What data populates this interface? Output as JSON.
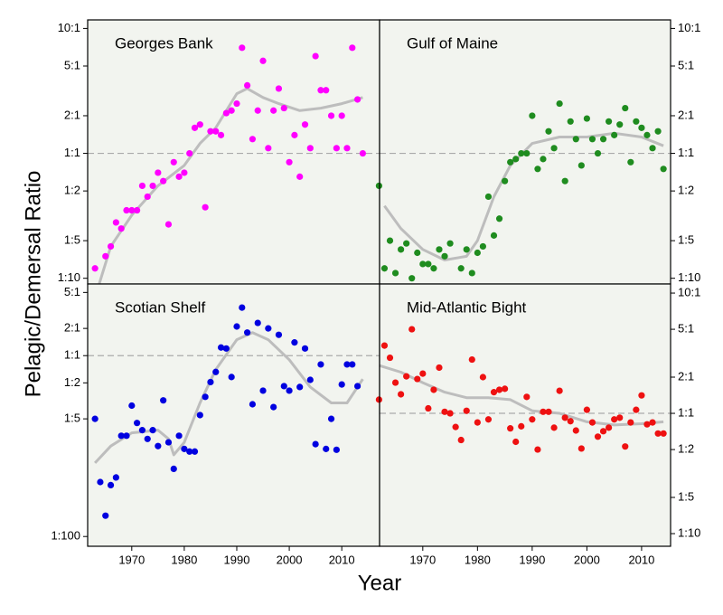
{
  "axis_labels": {
    "x": "Year",
    "y": "Pelagic/Demersal Ratio"
  },
  "chart_data": [
    {
      "type": "scatter",
      "title": "Georges Bank",
      "color": "#ff00ff",
      "log_scale": true,
      "yaxis_side": "left",
      "hline": 1,
      "xlim": [
        1961.6,
        2017.2
      ],
      "ylim": [
        0.09,
        11.7
      ],
      "yticks": [
        {
          "value": 10,
          "label": "10:1"
        },
        {
          "value": 5,
          "label": "5:1"
        },
        {
          "value": 2,
          "label": "2:1"
        },
        {
          "value": 1,
          "label": "1:1"
        },
        {
          "value": 0.5,
          "label": "1:2"
        },
        {
          "value": 0.2,
          "label": "1:5"
        },
        {
          "value": 0.1,
          "label": "1:10"
        }
      ],
      "x": [
        1963,
        1965,
        1966,
        1967,
        1968,
        1969,
        1970,
        1971,
        1972,
        1973,
        1974,
        1975,
        1976,
        1977,
        1978,
        1979,
        1980,
        1981,
        1982,
        1983,
        1984,
        1985,
        1986,
        1987,
        1988,
        1989,
        1990,
        1991,
        1992,
        1993,
        1994,
        1995,
        1996,
        1997,
        1998,
        1999,
        2000,
        2001,
        2002,
        2003,
        2004,
        2005,
        2006,
        2007,
        2008,
        2009,
        2010,
        2011,
        2012,
        2013,
        2014
      ],
      "values": [
        0.12,
        0.15,
        0.18,
        0.28,
        0.25,
        0.35,
        0.35,
        0.35,
        0.55,
        0.45,
        0.55,
        0.7,
        0.6,
        0.27,
        0.85,
        0.65,
        0.7,
        1.0,
        1.6,
        1.7,
        0.37,
        1.5,
        1.5,
        1.4,
        2.1,
        2.2,
        2.5,
        7,
        3.5,
        1.3,
        2.2,
        5.5,
        1.1,
        2.2,
        3.3,
        2.3,
        0.85,
        1.4,
        0.65,
        1.7,
        1.1,
        6,
        3.2,
        3.2,
        2,
        1.1,
        2,
        1.1,
        7,
        2.7,
        1
      ],
      "smooth": {
        "x": [
          1963,
          1966,
          1970,
          1975,
          1980,
          1983,
          1986,
          1990,
          1992,
          1995,
          1998,
          2002,
          2006,
          2010,
          2014
        ],
        "values": [
          0.07,
          0.18,
          0.32,
          0.55,
          0.8,
          1.2,
          1.6,
          3,
          3.3,
          2.8,
          2.5,
          2.2,
          2.3,
          2.5,
          2.8
        ]
      }
    },
    {
      "type": "scatter",
      "title": "Gulf of Maine",
      "color": "#1f8c1f",
      "log_scale": true,
      "yaxis_side": "right",
      "hline": 1,
      "xlim": [
        1962.1,
        2015.3
      ],
      "ylim": [
        0.09,
        11.7
      ],
      "yticks": [
        {
          "value": 10,
          "label": "10:1"
        },
        {
          "value": 5,
          "label": "5:1"
        },
        {
          "value": 2,
          "label": "2:1"
        },
        {
          "value": 1,
          "label": "1:1"
        },
        {
          "value": 0.5,
          "label": "1:2"
        },
        {
          "value": 0.2,
          "label": "1:5"
        },
        {
          "value": 0.1,
          "label": "1:10"
        }
      ],
      "x": [
        1962,
        1963,
        1964,
        1965,
        1966,
        1967,
        1968,
        1969,
        1970,
        1971,
        1972,
        1973,
        1974,
        1975,
        1977,
        1978,
        1979,
        1980,
        1981,
        1982,
        1983,
        1984,
        1985,
        1986,
        1987,
        1988,
        1989,
        1990,
        1991,
        1992,
        1993,
        1994,
        1995,
        1996,
        1997,
        1998,
        1999,
        2000,
        2001,
        2002,
        2003,
        2004,
        2005,
        2006,
        2007,
        2008,
        2009,
        2010,
        2011,
        2012,
        2013,
        2014
      ],
      "values": [
        0.55,
        0.12,
        0.2,
        0.11,
        0.17,
        0.19,
        0.1,
        0.16,
        0.13,
        0.13,
        0.12,
        0.17,
        0.15,
        0.19,
        0.12,
        0.17,
        0.11,
        0.16,
        0.18,
        0.45,
        0.22,
        0.3,
        0.6,
        0.85,
        0.9,
        1,
        1,
        2,
        0.75,
        0.9,
        1.5,
        1.1,
        2.5,
        0.6,
        1.8,
        1.3,
        0.8,
        1.9,
        1.3,
        1,
        1.3,
        1.8,
        1.4,
        1.7,
        2.3,
        0.85,
        1.8,
        1.6,
        1.4,
        1.1,
        1.5,
        0.75
      ],
      "smooth": {
        "x": [
          1963,
          1966,
          1970,
          1974,
          1978,
          1980,
          1983,
          1986,
          1990,
          1995,
          2000,
          2005,
          2010,
          2014
        ],
        "values": [
          0.38,
          0.25,
          0.17,
          0.14,
          0.15,
          0.2,
          0.45,
          0.8,
          1.2,
          1.35,
          1.35,
          1.45,
          1.35,
          1.15
        ]
      }
    },
    {
      "type": "scatter",
      "title": "Scotian Shelf",
      "color": "#0000e0",
      "log_scale": true,
      "yaxis_side": "left",
      "hline": 1,
      "xlim": [
        1961.6,
        2017.2
      ],
      "ylim": [
        0.0078,
        6.2
      ],
      "yticks": [
        {
          "value": 5,
          "label": "5:1"
        },
        {
          "value": 2,
          "label": "2:1"
        },
        {
          "value": 1,
          "label": "1:1"
        },
        {
          "value": 0.5,
          "label": "1:2"
        },
        {
          "value": 0.2,
          "label": "1:5"
        },
        {
          "value": 0.01,
          "label": "1:100"
        }
      ],
      "xticks": [
        1970,
        1980,
        1990,
        2000,
        2010
      ],
      "x": [
        1963,
        1964,
        1965,
        1966,
        1967,
        1968,
        1969,
        1970,
        1971,
        1972,
        1973,
        1974,
        1975,
        1976,
        1977,
        1978,
        1979,
        1980,
        1981,
        1982,
        1983,
        1984,
        1985,
        1986,
        1987,
        1988,
        1989,
        1990,
        1991,
        1992,
        1993,
        1994,
        1995,
        1996,
        1997,
        1998,
        1999,
        2000,
        2001,
        2002,
        2003,
        2004,
        2005,
        2006,
        2007,
        2008,
        2009,
        2010,
        2011,
        2012,
        2013
      ],
      "values": [
        0.2,
        0.04,
        0.017,
        0.037,
        0.045,
        0.13,
        0.13,
        0.28,
        0.18,
        0.15,
        0.12,
        0.15,
        0.1,
        0.32,
        0.11,
        0.056,
        0.13,
        0.093,
        0.087,
        0.087,
        0.22,
        0.35,
        0.51,
        0.66,
        1.23,
        1.2,
        0.58,
        2.1,
        3.4,
        1.8,
        0.29,
        2.3,
        0.41,
        2,
        0.27,
        1.7,
        0.46,
        0.41,
        1.4,
        0.45,
        1.2,
        0.54,
        0.105,
        0.8,
        0.093,
        0.2,
        0.091,
        0.48,
        0.8,
        0.8,
        0.46
      ],
      "smooth": {
        "x": [
          1963,
          1966,
          1970,
          1975,
          1977,
          1978,
          1980,
          1983,
          1986,
          1990,
          1993,
          1996,
          2000,
          2004,
          2008,
          2011,
          2014
        ],
        "values": [
          0.065,
          0.1,
          0.14,
          0.15,
          0.12,
          0.08,
          0.11,
          0.3,
          0.7,
          1.5,
          1.8,
          1.5,
          0.9,
          0.45,
          0.3,
          0.3,
          0.55
        ]
      }
    },
    {
      "type": "scatter",
      "title": "Mid-Atlantic Bight",
      "color": "#ee1111",
      "log_scale": true,
      "yaxis_side": "right",
      "hline": 1,
      "xlim": [
        1962.1,
        2015.3
      ],
      "ylim": [
        0.0785,
        11.9
      ],
      "yticks": [
        {
          "value": 10,
          "label": "10:1"
        },
        {
          "value": 5,
          "label": "5:1"
        },
        {
          "value": 2,
          "label": "2:1"
        },
        {
          "value": 1,
          "label": "1:1"
        },
        {
          "value": 0.5,
          "label": "1:2"
        },
        {
          "value": 0.2,
          "label": "1:5"
        },
        {
          "value": 0.1,
          "label": "1:10"
        }
      ],
      "xticks": [
        1970,
        1980,
        1990,
        2000,
        2010
      ],
      "x": [
        1962,
        1963,
        1964,
        1965,
        1966,
        1967,
        1968,
        1969,
        1970,
        1971,
        1972,
        1973,
        1974,
        1975,
        1976,
        1977,
        1978,
        1979,
        1980,
        1981,
        1982,
        1983,
        1984,
        1985,
        1986,
        1987,
        1988,
        1989,
        1990,
        1991,
        1992,
        1993,
        1994,
        1995,
        1996,
        1997,
        1998,
        1999,
        2000,
        2001,
        2002,
        2003,
        2004,
        2005,
        2006,
        2007,
        2008,
        2009,
        2010,
        2011,
        2012,
        2013,
        2014
      ],
      "values": [
        1.3,
        3.66,
        2.9,
        1.8,
        1.44,
        2.03,
        5,
        1.93,
        2.14,
        1.1,
        1.57,
        2.4,
        1.03,
        1,
        0.77,
        0.6,
        1.05,
        2.8,
        0.84,
        2,
        0.89,
        1.5,
        1.57,
        1.6,
        0.75,
        0.58,
        0.78,
        1.37,
        0.89,
        0.5,
        1.03,
        1.03,
        0.76,
        1.54,
        0.92,
        0.86,
        0.72,
        0.51,
        1.07,
        0.84,
        0.64,
        0.71,
        0.76,
        0.89,
        0.92,
        0.53,
        0.84,
        1.07,
        1.41,
        0.81,
        0.84,
        0.68,
        0.68
      ],
      "smooth": {
        "x": [
          1962,
          1966,
          1970,
          1974,
          1978,
          1982,
          1986,
          1990,
          1995,
          2000,
          2005,
          2010,
          2014
        ],
        "values": [
          2.5,
          2.2,
          1.8,
          1.5,
          1.35,
          1.35,
          1.3,
          1.05,
          1.0,
          0.85,
          0.8,
          0.82,
          0.85
        ]
      }
    }
  ]
}
